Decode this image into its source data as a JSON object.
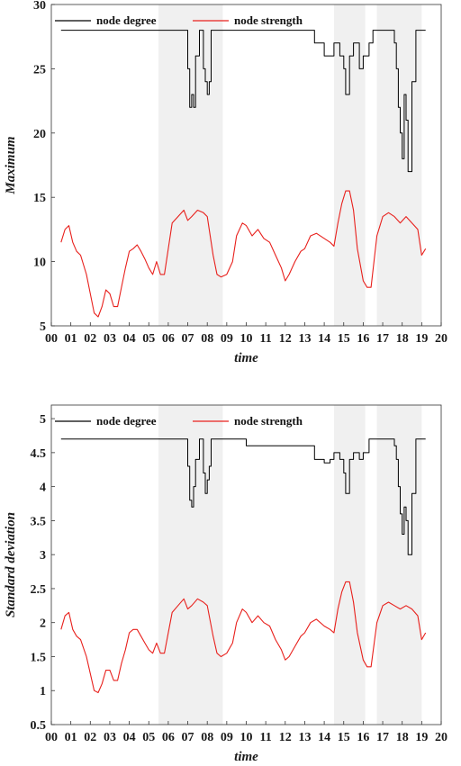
{
  "chart_data": [
    {
      "type": "line",
      "ylabel": "Maximum",
      "xlabel": "time",
      "xlim": [
        0,
        20
      ],
      "ylim": [
        5,
        30
      ],
      "xticks": [
        "00",
        "01",
        "02",
        "03",
        "04",
        "05",
        "06",
        "07",
        "08",
        "09",
        "10",
        "11",
        "12",
        "13",
        "14",
        "15",
        "16",
        "17",
        "18",
        "19",
        "20"
      ],
      "yticks": [
        "5",
        "10",
        "15",
        "20",
        "25",
        "30"
      ],
      "legend": "top-left",
      "shaded_intervals": [
        [
          5.5,
          8.8
        ],
        [
          14.5,
          16.1
        ],
        [
          16.7,
          19.0
        ]
      ],
      "series": [
        {
          "name": "node degree",
          "color": "#000000",
          "x": [
            0.5,
            0.6,
            1.0,
            1.5,
            2.0,
            2.5,
            3.0,
            3.5,
            4.0,
            4.5,
            5.0,
            5.5,
            6.0,
            6.5,
            6.9,
            7.0,
            7.1,
            7.2,
            7.3,
            7.4,
            7.6,
            7.8,
            7.9,
            8.0,
            8.1,
            8.2,
            8.5,
            9.0,
            9.5,
            10.0,
            10.5,
            11.0,
            11.5,
            12.0,
            12.5,
            13.0,
            13.3,
            13.5,
            13.8,
            14.0,
            14.3,
            14.5,
            14.8,
            15.0,
            15.1,
            15.3,
            15.5,
            15.8,
            16.0,
            16.3,
            16.5,
            17.0,
            17.4,
            17.6,
            17.7,
            17.8,
            17.9,
            18.0,
            18.1,
            18.2,
            18.3,
            18.5,
            18.7,
            19.0,
            19.2
          ],
          "y": [
            28,
            28,
            28,
            28,
            28,
            28,
            28,
            28,
            28,
            28,
            28,
            28,
            28,
            28,
            28,
            25,
            22,
            23,
            22,
            26,
            28,
            25,
            24,
            23,
            24,
            28,
            28,
            28,
            28,
            28,
            28,
            28,
            28,
            28,
            28,
            28,
            28,
            27,
            27,
            26,
            26,
            27,
            26,
            25,
            23,
            26,
            27,
            25,
            26,
            27,
            28,
            28,
            28,
            27,
            25,
            22,
            20,
            18,
            23,
            21,
            17,
            24,
            28,
            28,
            28
          ]
        },
        {
          "name": "node strength",
          "color": "#e8201c",
          "x": [
            0.5,
            0.7,
            0.9,
            1.1,
            1.3,
            1.5,
            1.8,
            2.0,
            2.2,
            2.4,
            2.6,
            2.8,
            3.0,
            3.2,
            3.4,
            3.6,
            3.8,
            4.0,
            4.2,
            4.4,
            4.6,
            4.8,
            5.0,
            5.2,
            5.4,
            5.6,
            5.8,
            6.0,
            6.2,
            6.5,
            6.8,
            7.0,
            7.2,
            7.5,
            7.8,
            8.0,
            8.3,
            8.5,
            8.7,
            9.0,
            9.3,
            9.5,
            9.8,
            10.0,
            10.3,
            10.6,
            10.9,
            11.2,
            11.5,
            11.8,
            12.0,
            12.2,
            12.5,
            12.8,
            13.0,
            13.3,
            13.6,
            14.0,
            14.3,
            14.5,
            14.7,
            14.9,
            15.1,
            15.3,
            15.5,
            15.7,
            16.0,
            16.2,
            16.4,
            16.7,
            17.0,
            17.3,
            17.6,
            17.9,
            18.2,
            18.5,
            18.8,
            19.0,
            19.2
          ],
          "y": [
            11.5,
            12.5,
            12.8,
            11.5,
            10.8,
            10.5,
            9.0,
            7.5,
            6.0,
            5.7,
            6.5,
            7.8,
            7.5,
            6.5,
            6.5,
            8.0,
            9.5,
            10.8,
            11.0,
            11.3,
            10.8,
            10.2,
            9.5,
            9.0,
            10.0,
            9.0,
            9.0,
            11.0,
            13.0,
            13.5,
            14.0,
            13.2,
            13.5,
            14.0,
            13.8,
            13.5,
            10.5,
            9.0,
            8.8,
            9.0,
            10.0,
            12.0,
            13.0,
            12.8,
            12.0,
            12.5,
            11.8,
            11.5,
            10.5,
            9.5,
            8.5,
            9.0,
            10.0,
            10.8,
            11.0,
            12.0,
            12.2,
            11.8,
            11.5,
            11.2,
            13.0,
            14.5,
            15.5,
            15.5,
            14.0,
            11.0,
            8.5,
            8.0,
            8.0,
            12.0,
            13.5,
            13.8,
            13.5,
            13.0,
            13.5,
            13.0,
            12.5,
            10.5,
            11.0
          ]
        }
      ]
    },
    {
      "type": "line",
      "ylabel": "Standard deviation",
      "xlabel": "time",
      "xlim": [
        0,
        20
      ],
      "ylim": [
        0.5,
        5.2
      ],
      "xticks": [
        "00",
        "01",
        "02",
        "03",
        "04",
        "05",
        "06",
        "07",
        "08",
        "09",
        "10",
        "11",
        "12",
        "13",
        "14",
        "15",
        "16",
        "17",
        "18",
        "19",
        "20"
      ],
      "yticks": [
        "0.5",
        "1",
        "1.5",
        "2",
        "2.5",
        "3",
        "3.5",
        "4",
        "4.5",
        "5"
      ],
      "legend": "top-left",
      "shaded_intervals": [
        [
          5.5,
          8.8
        ],
        [
          14.5,
          16.1
        ],
        [
          16.7,
          19.0
        ]
      ],
      "series": [
        {
          "name": "node degree",
          "color": "#000000",
          "x": [
            0.5,
            1.0,
            1.5,
            2.0,
            2.5,
            3.0,
            3.5,
            4.0,
            4.5,
            5.0,
            5.5,
            6.0,
            6.5,
            6.9,
            7.0,
            7.1,
            7.2,
            7.3,
            7.4,
            7.6,
            7.8,
            7.9,
            8.0,
            8.1,
            8.2,
            8.5,
            9.0,
            9.5,
            10.0,
            10.5,
            11.0,
            11.5,
            12.0,
            12.5,
            13.0,
            13.3,
            13.5,
            13.8,
            14.0,
            14.3,
            14.5,
            14.8,
            15.0,
            15.1,
            15.3,
            15.5,
            15.8,
            16.0,
            16.3,
            16.5,
            17.0,
            17.4,
            17.6,
            17.7,
            17.8,
            17.9,
            18.0,
            18.1,
            18.2,
            18.3,
            18.5,
            18.7,
            19.0,
            19.2
          ],
          "y": [
            4.7,
            4.7,
            4.7,
            4.7,
            4.7,
            4.7,
            4.7,
            4.7,
            4.7,
            4.7,
            4.7,
            4.7,
            4.7,
            4.7,
            4.3,
            3.8,
            3.7,
            4.0,
            4.4,
            4.7,
            4.2,
            3.9,
            4.1,
            4.3,
            4.7,
            4.7,
            4.7,
            4.7,
            4.6,
            4.6,
            4.6,
            4.6,
            4.6,
            4.6,
            4.6,
            4.6,
            4.4,
            4.4,
            4.35,
            4.4,
            4.5,
            4.4,
            4.2,
            3.9,
            4.4,
            4.5,
            4.4,
            4.5,
            4.7,
            4.7,
            4.7,
            4.7,
            4.6,
            4.4,
            4.0,
            3.6,
            3.3,
            3.7,
            3.5,
            3.0,
            3.9,
            4.7,
            4.7,
            4.7
          ]
        },
        {
          "name": "node strength",
          "color": "#e8201c",
          "x": [
            0.5,
            0.7,
            0.9,
            1.1,
            1.3,
            1.5,
            1.8,
            2.0,
            2.2,
            2.4,
            2.6,
            2.8,
            3.0,
            3.2,
            3.4,
            3.6,
            3.8,
            4.0,
            4.2,
            4.4,
            4.6,
            4.8,
            5.0,
            5.2,
            5.4,
            5.6,
            5.8,
            6.0,
            6.2,
            6.5,
            6.8,
            7.0,
            7.2,
            7.5,
            7.8,
            8.0,
            8.3,
            8.5,
            8.7,
            9.0,
            9.3,
            9.5,
            9.8,
            10.0,
            10.3,
            10.6,
            10.9,
            11.2,
            11.5,
            11.8,
            12.0,
            12.2,
            12.5,
            12.8,
            13.0,
            13.3,
            13.6,
            14.0,
            14.3,
            14.5,
            14.7,
            14.9,
            15.1,
            15.3,
            15.5,
            15.7,
            16.0,
            16.2,
            16.4,
            16.7,
            17.0,
            17.3,
            17.6,
            17.9,
            18.2,
            18.5,
            18.8,
            19.0,
            19.2
          ],
          "y": [
            1.9,
            2.1,
            2.15,
            1.9,
            1.8,
            1.75,
            1.5,
            1.25,
            1.0,
            0.97,
            1.1,
            1.3,
            1.3,
            1.15,
            1.15,
            1.4,
            1.6,
            1.85,
            1.9,
            1.9,
            1.8,
            1.7,
            1.6,
            1.55,
            1.7,
            1.55,
            1.55,
            1.85,
            2.15,
            2.25,
            2.35,
            2.2,
            2.25,
            2.35,
            2.3,
            2.25,
            1.8,
            1.55,
            1.5,
            1.55,
            1.7,
            2.0,
            2.2,
            2.15,
            2.0,
            2.1,
            2.0,
            1.95,
            1.75,
            1.6,
            1.45,
            1.5,
            1.65,
            1.8,
            1.85,
            2.0,
            2.05,
            1.95,
            1.9,
            1.85,
            2.2,
            2.45,
            2.6,
            2.6,
            2.3,
            1.85,
            1.45,
            1.35,
            1.35,
            2.0,
            2.25,
            2.3,
            2.25,
            2.2,
            2.25,
            2.2,
            2.1,
            1.75,
            1.85
          ]
        }
      ]
    }
  ]
}
